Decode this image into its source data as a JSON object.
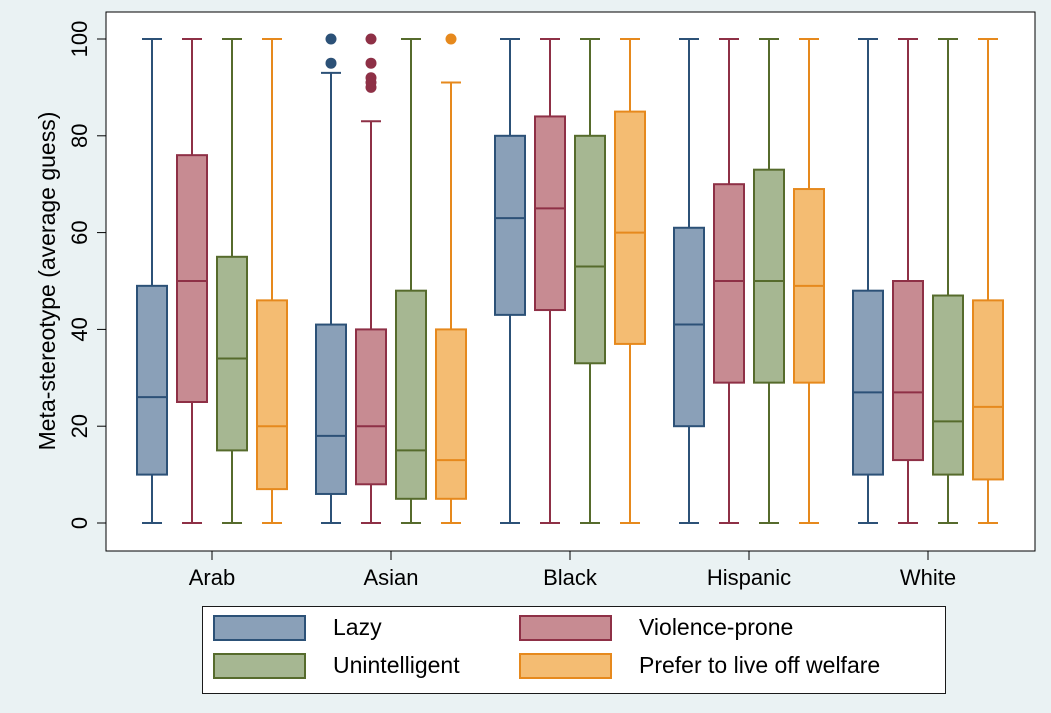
{
  "chart_data": {
    "type": "box",
    "ylabel": "Meta-stereotype (average guess)",
    "xlabel": "",
    "ylim": [
      0,
      100
    ],
    "yticks": [
      0,
      20,
      40,
      60,
      80,
      100
    ],
    "categories": [
      "Arab",
      "Asian",
      "Black",
      "Hispanic",
      "White"
    ],
    "legend_position": "bottom",
    "grid": false,
    "series": [
      {
        "name": "Lazy",
        "fill": "#8aa0b8",
        "stroke": "#2c5177",
        "boxes": [
          {
            "min": 0,
            "q1": 10,
            "median": 26,
            "q3": 49,
            "max": 100,
            "outliers": []
          },
          {
            "min": 0,
            "q1": 6,
            "median": 18,
            "q3": 41,
            "max": 93,
            "outliers": [
              95,
              100
            ]
          },
          {
            "min": 0,
            "q1": 43,
            "median": 63,
            "q3": 80,
            "max": 100,
            "outliers": []
          },
          {
            "min": 0,
            "q1": 20,
            "median": 41,
            "q3": 61,
            "max": 100,
            "outliers": []
          },
          {
            "min": 0,
            "q1": 10,
            "median": 27,
            "q3": 48,
            "max": 100,
            "outliers": []
          }
        ]
      },
      {
        "name": "Violence-prone",
        "fill": "#c78b92",
        "stroke": "#8e3046",
        "boxes": [
          {
            "min": 0,
            "q1": 25,
            "median": 50,
            "q3": 76,
            "max": 100,
            "outliers": []
          },
          {
            "min": 0,
            "q1": 8,
            "median": 20,
            "q3": 40,
            "max": 83,
            "outliers": [
              90,
              91,
              92,
              95,
              100
            ]
          },
          {
            "min": 0,
            "q1": 44,
            "median": 65,
            "q3": 84,
            "max": 100,
            "outliers": []
          },
          {
            "min": 0,
            "q1": 29,
            "median": 50,
            "q3": 70,
            "max": 100,
            "outliers": []
          },
          {
            "min": 0,
            "q1": 13,
            "median": 27,
            "q3": 50,
            "max": 100,
            "outliers": []
          }
        ]
      },
      {
        "name": "Unintelligent",
        "fill": "#a6b792",
        "stroke": "#566b2c",
        "boxes": [
          {
            "min": 0,
            "q1": 15,
            "median": 34,
            "q3": 55,
            "max": 100,
            "outliers": []
          },
          {
            "min": 0,
            "q1": 5,
            "median": 15,
            "q3": 48,
            "max": 100,
            "outliers": []
          },
          {
            "min": 0,
            "q1": 33,
            "median": 53,
            "q3": 80,
            "max": 100,
            "outliers": []
          },
          {
            "min": 0,
            "q1": 29,
            "median": 50,
            "q3": 73,
            "max": 100,
            "outliers": []
          },
          {
            "min": 0,
            "q1": 10,
            "median": 21,
            "q3": 47,
            "max": 100,
            "outliers": []
          }
        ]
      },
      {
        "name": "Prefer to live off welfare",
        "fill": "#f4bc72",
        "stroke": "#e6891d",
        "boxes": [
          {
            "min": 0,
            "q1": 7,
            "median": 20,
            "q3": 46,
            "max": 100,
            "outliers": []
          },
          {
            "min": 0,
            "q1": 5,
            "median": 13,
            "q3": 40,
            "max": 91,
            "outliers": [
              100
            ]
          },
          {
            "min": 0,
            "q1": 37,
            "median": 60,
            "q3": 85,
            "max": 100,
            "outliers": []
          },
          {
            "min": 0,
            "q1": 29,
            "median": 49,
            "q3": 69,
            "max": 100,
            "outliers": []
          },
          {
            "min": 0,
            "q1": 9,
            "median": 24,
            "q3": 46,
            "max": 100,
            "outliers": []
          }
        ]
      }
    ]
  }
}
